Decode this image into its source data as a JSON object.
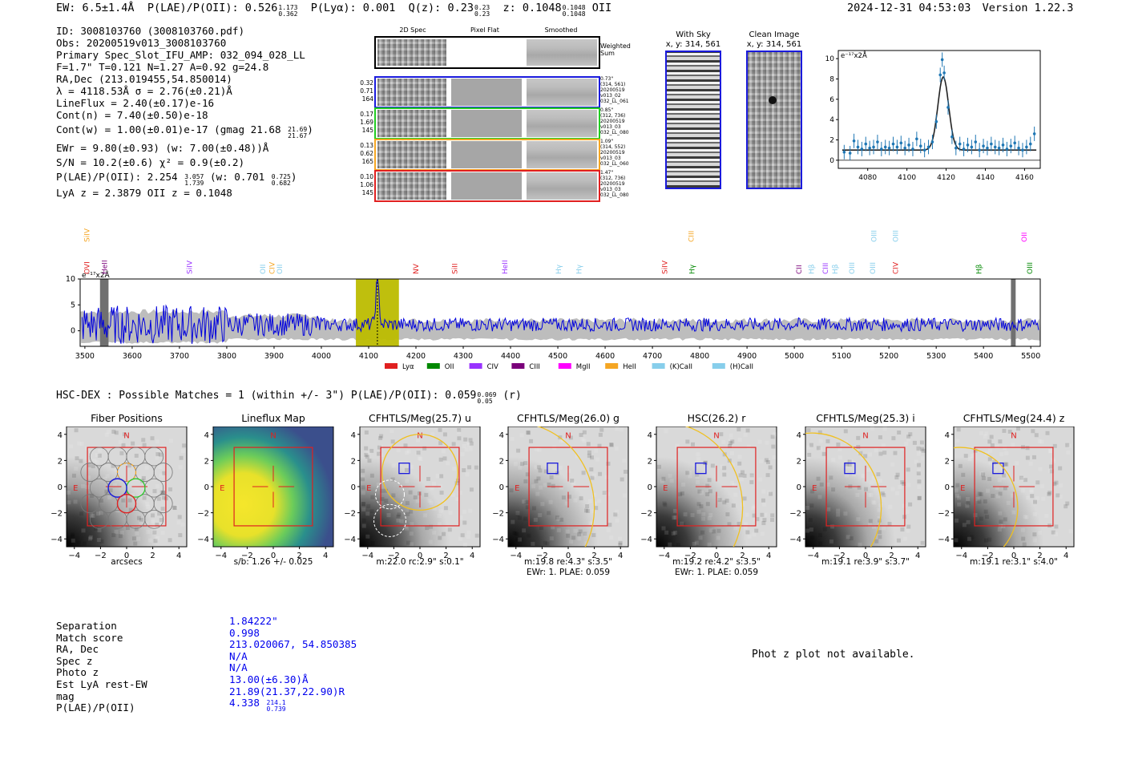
{
  "header": {
    "ew": "EW: 6.5±1.4Å",
    "plae_label": "P(LAE)/P(OII): 0.526",
    "plae_hi": "1.173",
    "plae_lo": "0.362",
    "plya": "P(Lyα): 0.001",
    "qz_label": "Q(z): 0.23",
    "qz_hi": "0.23",
    "qz_lo": "0.23",
    "z_label": "z: 0.1048",
    "z_hi": "0.1048",
    "z_lo": "0.1048",
    "z_line": "OII",
    "timestamp": "2024-12-31 04:53:03",
    "version": "Version 1.22.3"
  },
  "info": {
    "id": "ID: 3008103760 (3008103760.pdf)",
    "obs": "Obs: 20200519v013_3008103760",
    "primary": "Primary Spec_Slot_IFU_AMP: 032_094_028_LL",
    "fwhm": "F=1.7\"  T=0.121  N=1.27  A=0.92  g=24.8",
    "radec": "RA,Dec (213.019455,54.850014)",
    "lambda": "λ = 4118.53Å  σ = 2.76(±0.21)Å",
    "lineflux": "LineFlux = 2.40(±0.17)e-16",
    "contn": "Cont(n) = 7.40(±0.50)e-18",
    "contw": "Cont(w) = 1.00(±0.01)e-17 (gmag 21.68",
    "contw_hi": "21.69",
    "contw_lo": "21.67",
    "contw_close": ")",
    "ewr": "EWr = 9.80(±0.93) (w: 7.00(±0.48))Å",
    "sn": "S/N = 10.2(±0.6)  χ² = 0.9(±0.2)",
    "plae": "P(LAE)/P(OII): 2.254",
    "plae_hi": "3.057",
    "plae_lo": "1.739",
    "plae_w": "(w: 0.701",
    "plae_w_hi": "0.725",
    "plae_w_lo": "0.682",
    "plae_w_close": ")",
    "lya_z": "LyA z = 2.3879   OII z = 0.1048"
  },
  "spec2d": {
    "col_labels": [
      "2D Spec",
      "Pixel Flat",
      "Smoothed"
    ],
    "weighted_sum": "Weighted Sum",
    "rows": [
      {
        "stats": [
          "0.32",
          "0.71",
          "164"
        ],
        "meta": [
          "0.73\"",
          "(314, 561)",
          "20200519",
          "v013_02",
          "032_LL_061"
        ],
        "color": "#1a1adc"
      },
      {
        "stats": [
          "0.17",
          "1.69",
          "145"
        ],
        "meta": [
          "0.85\"",
          "(312, 736)",
          "20200519",
          "v013_03",
          "032_LL_080"
        ],
        "color": "#22cc22"
      },
      {
        "stats": [
          "0.13",
          "0.62",
          "165"
        ],
        "meta": [
          "1.09\"",
          "(314, 552)",
          "20200519",
          "v013_03",
          "032_LL_060"
        ],
        "color": "#f5a623"
      },
      {
        "stats": [
          "0.10",
          "1.06",
          "145"
        ],
        "meta": [
          "1.47\"",
          "(312, 736)",
          "20200519",
          "v013_03",
          "032_LL_080"
        ],
        "color": "#e02020"
      }
    ]
  },
  "sky": {
    "with_sky_title": "With Sky",
    "with_sky_xy": "x, y: 314, 561",
    "clean_title": "Clean Image",
    "clean_xy": "x, y: 314, 561"
  },
  "zoom_plot": {
    "unit": "e⁻¹⁷x2Å",
    "yticks": [
      "0",
      "2",
      "4",
      "6",
      "8",
      "10"
    ],
    "xticks": [
      "4080",
      "4100",
      "4120",
      "4140",
      "4160"
    ],
    "ylim": [
      -0.8,
      10.8
    ],
    "xlim": [
      4065,
      4168
    ],
    "model": {
      "center": 4118.53,
      "sigma": 2.76,
      "amp": 7.2,
      "cont": 1.0
    },
    "points": [
      [
        4068,
        0.8
      ],
      [
        4071,
        0.7
      ],
      [
        4073,
        1.9
      ],
      [
        4075,
        1.3
      ],
      [
        4077,
        1.1
      ],
      [
        4079,
        1.6
      ],
      [
        4081,
        1.2
      ],
      [
        4083,
        1.3
      ],
      [
        4085,
        1.8
      ],
      [
        4087,
        1.1
      ],
      [
        4089,
        1.3
      ],
      [
        4091,
        1.2
      ],
      [
        4093,
        1.6
      ],
      [
        4095,
        1.3
      ],
      [
        4097,
        1.7
      ],
      [
        4099,
        1.2
      ],
      [
        4101,
        1.5
      ],
      [
        4103,
        1.1
      ],
      [
        4105,
        2.1
      ],
      [
        4107,
        1.4
      ],
      [
        4109,
        1.0
      ],
      [
        4111,
        1.3
      ],
      [
        4113,
        1.8
      ],
      [
        4115,
        3.8
      ],
      [
        4117,
        8.4
      ],
      [
        4118,
        9.9
      ],
      [
        4119,
        8.6
      ],
      [
        4121,
        5.2
      ],
      [
        4123,
        2.3
      ],
      [
        4125,
        1.2
      ],
      [
        4127,
        1.6
      ],
      [
        4129,
        1.1
      ],
      [
        4131,
        1.5
      ],
      [
        4133,
        1.3
      ],
      [
        4135,
        1.8
      ],
      [
        4137,
        1.0
      ],
      [
        4139,
        1.4
      ],
      [
        4141,
        1.2
      ],
      [
        4143,
        1.6
      ],
      [
        4145,
        1.3
      ],
      [
        4147,
        1.2
      ],
      [
        4149,
        1.5
      ],
      [
        4151,
        1.1
      ],
      [
        4153,
        1.4
      ],
      [
        4155,
        1.7
      ],
      [
        4157,
        1.2
      ],
      [
        4159,
        1.0
      ],
      [
        4161,
        1.3
      ],
      [
        4163,
        1.6
      ],
      [
        4165,
        2.6
      ]
    ]
  },
  "full_spec": {
    "unit": "e⁻¹⁷x2Å",
    "yticks": [
      "0",
      "5",
      "10"
    ],
    "xticks": [
      "3500",
      "3600",
      "3700",
      "3800",
      "3900",
      "4000",
      "4100",
      "4200",
      "4300",
      "4400",
      "4500",
      "4600",
      "4700",
      "4800",
      "4900",
      "5000",
      "5100",
      "5200",
      "5300",
      "5400",
      "5500"
    ],
    "xlim": [
      3490,
      5520
    ],
    "ylim": [
      -3,
      10
    ],
    "highlight": [
      4073,
      4164
    ],
    "line_labels": [
      {
        "t": "OVI",
        "x": 3504,
        "row": "low",
        "c": "#e02020"
      },
      {
        "t": "SiIV",
        "x": 3504,
        "row": "high",
        "c": "#f5a623"
      },
      {
        "t": "HeII",
        "x": 3542,
        "row": "low",
        "c": "#7a007a"
      },
      {
        "t": "SiIV",
        "x": 3721,
        "row": "low",
        "c": "#9933ff"
      },
      {
        "t": "OII",
        "x": 3876,
        "row": "low",
        "c": "#87ceeb"
      },
      {
        "t": "CIV",
        "x": 3896,
        "row": "low",
        "c": "#f5a623"
      },
      {
        "t": "OII",
        "x": 3912,
        "row": "low",
        "c": "#87ceeb"
      },
      {
        "t": "NV",
        "x": 4200,
        "row": "low",
        "c": "#e02020"
      },
      {
        "t": "SiII",
        "x": 4282,
        "row": "low",
        "c": "#e02020"
      },
      {
        "t": "HeII",
        "x": 4388,
        "row": "low",
        "c": "#9933ff"
      },
      {
        "t": "Hγ",
        "x": 4502,
        "row": "low",
        "c": "#87ceeb"
      },
      {
        "t": "Hγ",
        "x": 4545,
        "row": "low",
        "c": "#87ceeb"
      },
      {
        "t": "SiIV",
        "x": 4726,
        "row": "low",
        "c": "#e02020"
      },
      {
        "t": "CIII",
        "x": 4782,
        "row": "high",
        "c": "#f5a623"
      },
      {
        "t": "Hγ",
        "x": 4784,
        "row": "low",
        "c": "#008800"
      },
      {
        "t": "CII",
        "x": 5010,
        "row": "low",
        "c": "#7a007a"
      },
      {
        "t": "Hβ",
        "x": 5036,
        "row": "low",
        "c": "#87ceeb"
      },
      {
        "t": "CIII",
        "x": 5066,
        "row": "low",
        "c": "#9933ff"
      },
      {
        "t": "Hβ",
        "x": 5086,
        "row": "low",
        "c": "#87ceeb"
      },
      {
        "t": "OIII",
        "x": 5122,
        "row": "low",
        "c": "#87ceeb"
      },
      {
        "t": "OIII",
        "x": 5168,
        "row": "high",
        "c": "#87ceeb"
      },
      {
        "t": "OIII",
        "x": 5166,
        "row": "low",
        "c": "#87ceeb"
      },
      {
        "t": "CIV",
        "x": 5214,
        "row": "low",
        "c": "#e02020"
      },
      {
        "t": "OIII",
        "x": 5214,
        "row": "high",
        "c": "#87ceeb"
      },
      {
        "t": "Hβ",
        "x": 5390,
        "row": "low",
        "c": "#008800"
      },
      {
        "t": "OII",
        "x": 5486,
        "row": "high",
        "c": "#ff00ff"
      },
      {
        "t": "OIII",
        "x": 5498,
        "row": "low",
        "c": "#008800"
      }
    ],
    "legend": [
      {
        "label": "Lyα",
        "color": "#e02020"
      },
      {
        "label": "OII",
        "color": "#008800"
      },
      {
        "label": "CIV",
        "color": "#9933ff"
      },
      {
        "label": "CIII",
        "color": "#7a007a"
      },
      {
        "label": "MgII",
        "color": "#ff00ff"
      },
      {
        "label": "HeII",
        "color": "#f5a623"
      },
      {
        "label": "(K)CaII",
        "color": "#87ceeb"
      },
      {
        "label": "(H)CaII",
        "color": "#87ceeb"
      }
    ]
  },
  "hsc": {
    "line": "HSC-DEX : Possible Matches = 1 (within +/- 3\")  P(LAE)/P(OII): 0.059",
    "hi": "0.069",
    "lo": "0.05",
    "band": "(r)"
  },
  "cutouts": {
    "ticks": [
      "−4",
      "−2",
      "0",
      "2",
      "4"
    ],
    "n_label": "N",
    "e_label": "E",
    "panels": [
      {
        "title": "Fiber Positions",
        "foot1": "arcsecs",
        "foot2": "",
        "kind": "fiber"
      },
      {
        "title": "Lineflux Map",
        "foot1": "s/b: 1.26 +/- 0.025",
        "foot2": "",
        "kind": "lineflux"
      },
      {
        "title": "CFHTLS/Meg(25.7) u",
        "foot1": "m:22.0 rc:2.9\"  s:0.1\"",
        "foot2": "",
        "kind": "u"
      },
      {
        "title": "CFHTLS/Meg(26.0) g",
        "foot1": "m:19.8  re:4.3\"  s:3.5\"",
        "foot2": "EWr: 1. PLAE: 0.059",
        "kind": "g"
      },
      {
        "title": "HSC(26.2) r",
        "foot1": "m:19.2  re:4.2\"  s:3.5\"",
        "foot2": "EWr: 1. PLAE: 0.059",
        "kind": "r"
      },
      {
        "title": "CFHTLS/Meg(25.3) i",
        "foot1": "m:19.1  re:3.9\"  s:3.7\"",
        "foot2": "",
        "kind": "i"
      },
      {
        "title": "CFHTLS/Meg(24.4) z",
        "foot1": "m:19.1  re:3.1\"  s:4.0\"",
        "foot2": "",
        "kind": "z"
      }
    ]
  },
  "match": {
    "labels": [
      "Separation",
      "Match score",
      "RA, Dec",
      "Spec z",
      "Photo z",
      "Est LyA rest-EW",
      "mag",
      "P(LAE)/P(OII)"
    ],
    "values": [
      "1.84222\"",
      "0.998",
      "213.020067, 54.850385",
      "N/A",
      "N/A",
      "13.00(±6.30)Å",
      "21.89(21.37,22.90)R",
      "4.338"
    ],
    "plae_hi": "214.1",
    "plae_lo": "0.739",
    "photz_note": "Phot z plot not available."
  }
}
